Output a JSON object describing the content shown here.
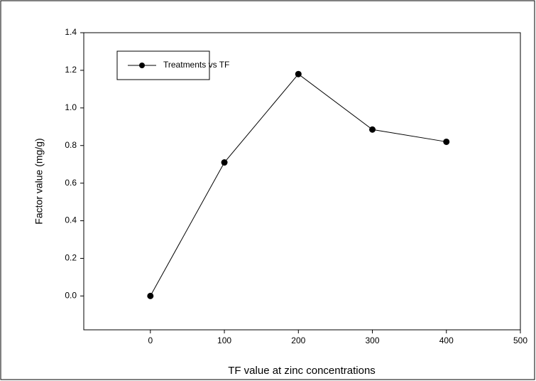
{
  "chart_data": {
    "type": "line",
    "x_label": "TF value at zinc concentrations",
    "y_label": "Factor value (mg/g)",
    "x": [
      0,
      100,
      200,
      300,
      400
    ],
    "series": [
      {
        "name": "Treatments vs TF",
        "color": "#000000",
        "values": [
          0.0,
          0.71,
          1.18,
          0.885,
          0.82
        ]
      }
    ],
    "xlim": [
      -90,
      500
    ],
    "xticks": [
      0,
      100,
      200,
      300,
      400,
      500
    ],
    "ylim": [
      -0.18,
      1.4
    ],
    "yticks": [
      {
        "value": 0,
        "label": "0.0"
      },
      {
        "value": 0.2,
        "label": "0.2"
      },
      {
        "value": 0.4,
        "label": "0.4"
      },
      {
        "value": 0.6,
        "label": "0.6"
      },
      {
        "value": 0.8,
        "label": "0.8"
      },
      {
        "value": 1.0,
        "label": "1.0"
      },
      {
        "value": 1.2,
        "label": "1.2"
      },
      {
        "value": 1.4,
        "label": "1.4"
      }
    ],
    "legend": "top-left"
  }
}
